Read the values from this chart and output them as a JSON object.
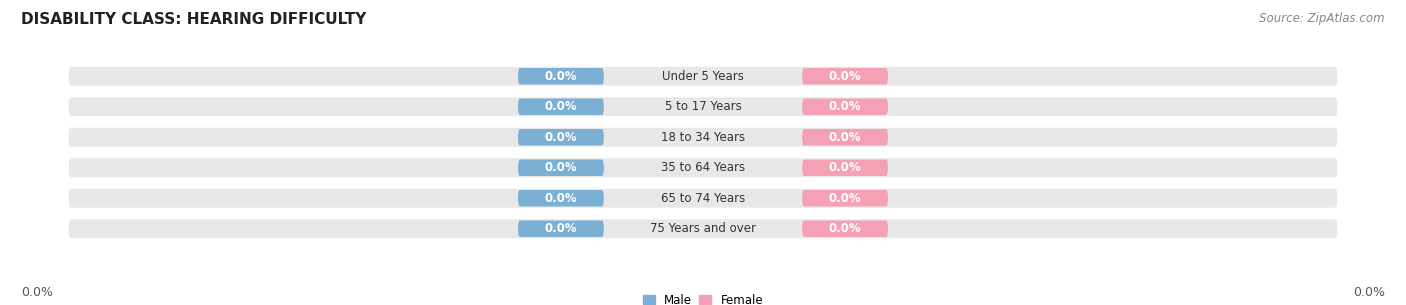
{
  "title": "DISABILITY CLASS: HEARING DIFFICULTY",
  "source": "Source: ZipAtlas.com",
  "categories": [
    "Under 5 Years",
    "5 to 17 Years",
    "18 to 34 Years",
    "35 to 64 Years",
    "65 to 74 Years",
    "75 Years and over"
  ],
  "male_values": [
    0.0,
    0.0,
    0.0,
    0.0,
    0.0,
    0.0
  ],
  "female_values": [
    0.0,
    0.0,
    0.0,
    0.0,
    0.0,
    0.0
  ],
  "male_color": "#7bafd4",
  "female_color": "#f4a0b5",
  "male_label": "Male",
  "female_label": "Female",
  "bar_bg_color": "#e8e8e8",
  "bar_height": 0.62,
  "title_fontsize": 11,
  "label_fontsize": 8.5,
  "tick_fontsize": 9,
  "source_fontsize": 8.5,
  "fig_bg_color": "#ffffff",
  "title_color": "#222222",
  "cat_text_color": "#333333",
  "value_text_color": "#ffffff",
  "bottom_label_color": "#555555"
}
